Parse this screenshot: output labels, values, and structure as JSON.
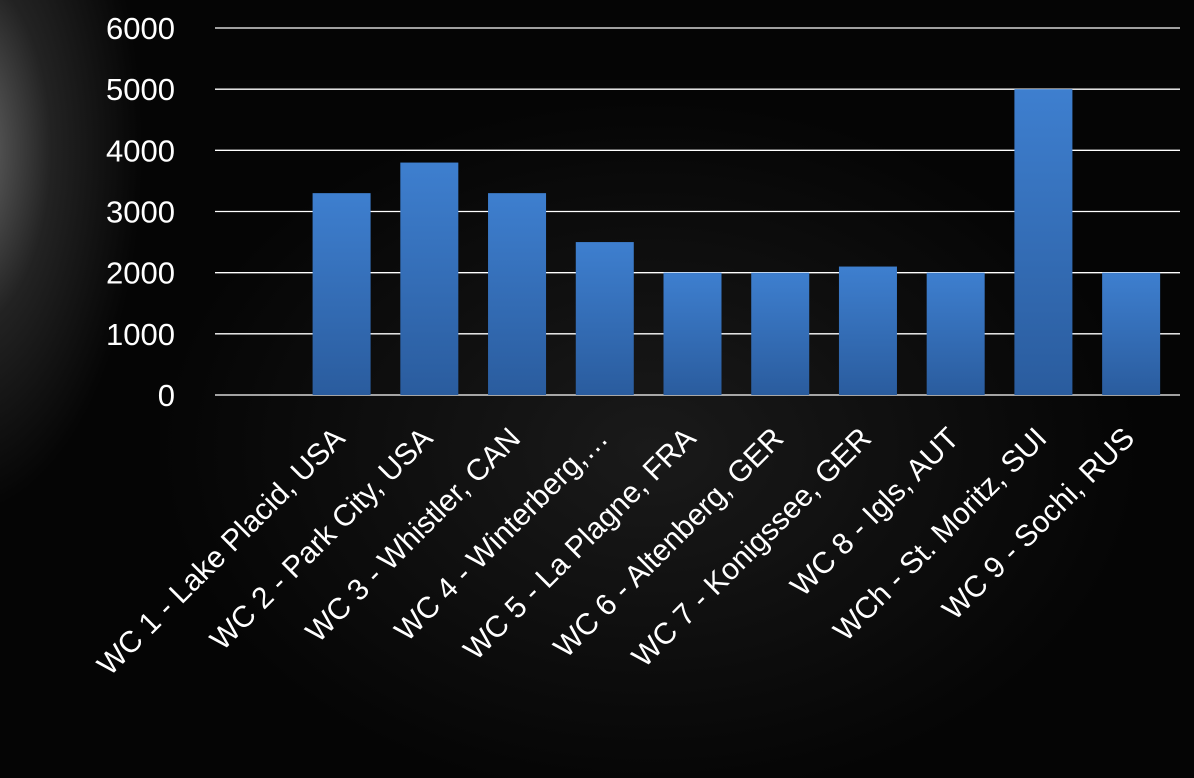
{
  "chart_data": {
    "type": "bar",
    "title": "",
    "xlabel": "",
    "ylabel": "",
    "categories": [
      "WC 1 - Lake Placid, USA",
      "WC 2 - Park City, USA",
      "WC 3 - Whistler, CAN",
      "WC 4 - Winterberg,…",
      "WC 5 - La Plagne, FRA",
      "WC 6 - Altenberg, GER",
      "WC 7 - Konigssee, GER",
      "WC 8 - Igls, AUT",
      "WCh - St. Moritz, SUI",
      "WC 9 - Sochi, RUS"
    ],
    "values": [
      3300,
      3800,
      3300,
      2500,
      2000,
      2000,
      2100,
      2000,
      5000,
      2000
    ],
    "ylim": [
      0,
      6000
    ],
    "yticks": [
      "0",
      "1000",
      "2000",
      "3000",
      "4000",
      "5000",
      "6000"
    ],
    "grid": true,
    "legend": "none",
    "colors": {
      "bar_top": "#3E7FCF",
      "bar_bottom": "#2A5C9E",
      "grid": "#FFFFFF",
      "text": "#FFFFFF",
      "background": "#000000"
    }
  }
}
